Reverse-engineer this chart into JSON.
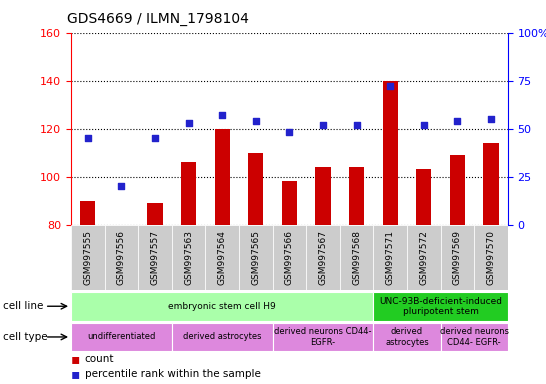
{
  "title": "GDS4669 / ILMN_1798104",
  "samples": [
    "GSM997555",
    "GSM997556",
    "GSM997557",
    "GSM997563",
    "GSM997564",
    "GSM997565",
    "GSM997566",
    "GSM997567",
    "GSM997568",
    "GSM997571",
    "GSM997572",
    "GSM997569",
    "GSM997570"
  ],
  "counts": [
    90,
    80,
    89,
    106,
    120,
    110,
    98,
    104,
    104,
    140,
    103,
    109,
    114
  ],
  "percentiles": [
    45,
    20,
    45,
    53,
    57,
    54,
    48,
    52,
    52,
    72,
    52,
    54,
    55
  ],
  "ylim_left": [
    80,
    160
  ],
  "ylim_right": [
    0,
    100
  ],
  "yticks_left": [
    80,
    100,
    120,
    140,
    160
  ],
  "yticks_right": [
    0,
    25,
    50,
    75,
    100
  ],
  "bar_color": "#cc0000",
  "dot_color": "#2222cc",
  "grid_color": "#000000",
  "bg_color": "#ffffff",
  "bar_bottom": 80,
  "cell_line_groups": [
    {
      "label": "embryonic stem cell H9",
      "start": 0,
      "end": 9,
      "color": "#aaffaa"
    },
    {
      "label": "UNC-93B-deficient-induced\npluripotent stem",
      "start": 9,
      "end": 13,
      "color": "#22cc22"
    }
  ],
  "cell_type_groups": [
    {
      "label": "undifferentiated",
      "start": 0,
      "end": 3,
      "color": "#dd88dd"
    },
    {
      "label": "derived astrocytes",
      "start": 3,
      "end": 6,
      "color": "#dd88dd"
    },
    {
      "label": "derived neurons CD44-\nEGFR-",
      "start": 6,
      "end": 9,
      "color": "#dd88dd"
    },
    {
      "label": "derived\nastrocytes",
      "start": 9,
      "end": 11,
      "color": "#dd88dd"
    },
    {
      "label": "derived neurons\nCD44- EGFR-",
      "start": 11,
      "end": 13,
      "color": "#dd88dd"
    }
  ],
  "cell_line_label": "cell line",
  "cell_type_label": "cell type",
  "legend_count_label": "count",
  "legend_pct_label": "percentile rank within the sample",
  "tick_bg_color": "#cccccc"
}
